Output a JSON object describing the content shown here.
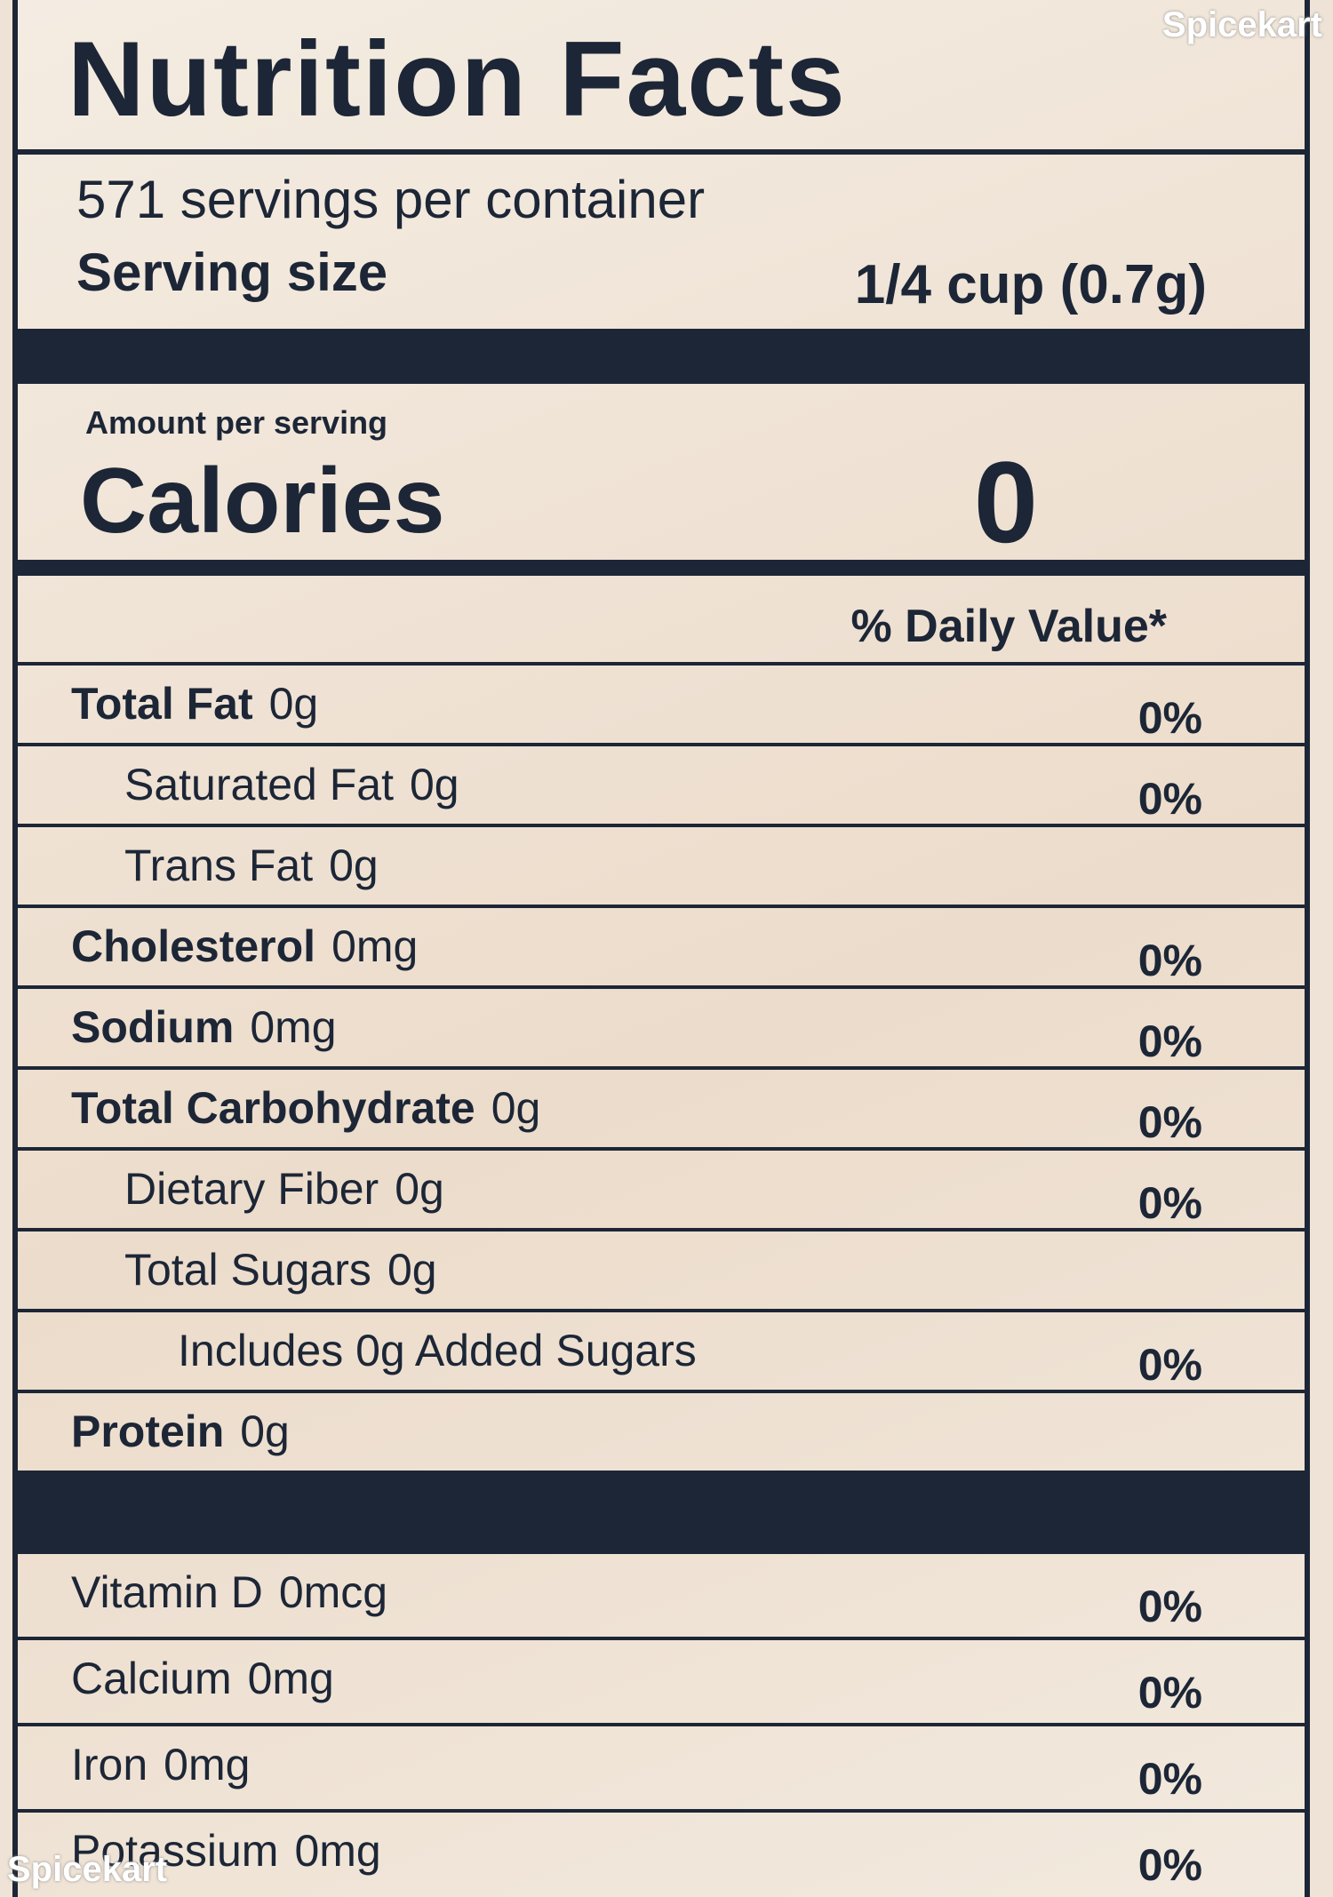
{
  "header": {
    "title": "Nutrition Facts",
    "servings": "571 servings per container",
    "serving_size_label": "Serving size",
    "serving_size_value": "1/4 cup (0.7g)"
  },
  "calories": {
    "amount_per_serving": "Amount per serving",
    "label": "Calories",
    "value": "0"
  },
  "daily_value_header": "% Daily Value*",
  "rows": [
    {
      "label": "Total Fat",
      "amount": "0g",
      "dv": "0%"
    },
    {
      "label": "Saturated Fat",
      "amount": "0g",
      "dv": "0%"
    },
    {
      "label": "Trans Fat",
      "amount": "0g"
    },
    {
      "label": "Cholesterol",
      "amount": "0mg",
      "dv": "0%"
    },
    {
      "label": "Sodium",
      "amount": "0mg",
      "dv": "0%"
    },
    {
      "label": "Total Carbohydrate",
      "amount": "0g",
      "dv": "0%"
    },
    {
      "label": "Dietary Fiber",
      "amount": "0g",
      "dv": "0%"
    },
    {
      "label": "Total Sugars",
      "amount": "0g"
    },
    {
      "label": "Includes 0g Added Sugars",
      "dv": "0%"
    },
    {
      "label": "Protein",
      "amount": "0g"
    }
  ],
  "vitamins": [
    {
      "label": "Vitamin D",
      "amount": "0mcg",
      "dv": "0%"
    },
    {
      "label": "Calcium",
      "amount": "0mg",
      "dv": "0%"
    },
    {
      "label": "Iron",
      "amount": "0mg",
      "dv": "0%"
    },
    {
      "label": "Potassium",
      "amount": "0mg",
      "dv": "0%"
    }
  ],
  "watermarks": [
    "Spicekart",
    "Spicekart"
  ]
}
